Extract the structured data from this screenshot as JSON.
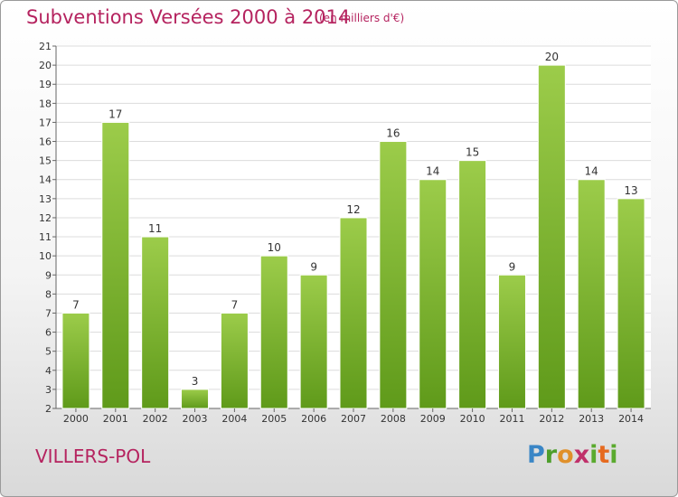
{
  "header": {
    "title": "Subventions Versées 2000 à 2014",
    "unit": "(en milliers d'€)"
  },
  "footer": {
    "commune": "VILLERS-POL",
    "logo": "Proxiti"
  },
  "colors": {
    "title": "#b5235f",
    "bar_light": "#9ccc4a",
    "bar_dark": "#5f9a1a",
    "grid": "#dcdcdc"
  },
  "chart_data": {
    "type": "bar",
    "title": "Subventions Versées 2000 à 2014",
    "subtitle": "(en milliers d'€)",
    "xlabel": "",
    "ylabel": "",
    "categories": [
      "2000",
      "2001",
      "2002",
      "2003",
      "2004",
      "2005",
      "2006",
      "2007",
      "2008",
      "2009",
      "2010",
      "2011",
      "2012",
      "2013",
      "2014"
    ],
    "values": [
      7,
      17,
      11,
      3,
      7,
      10,
      9,
      12,
      16,
      14,
      15,
      9,
      20,
      14,
      13
    ],
    "ylim": [
      2,
      21
    ],
    "yticks": [
      2,
      3,
      4,
      5,
      6,
      7,
      8,
      9,
      10,
      11,
      12,
      13,
      14,
      15,
      16,
      17,
      18,
      19,
      20,
      21
    ],
    "grid": true,
    "legend": "none"
  }
}
